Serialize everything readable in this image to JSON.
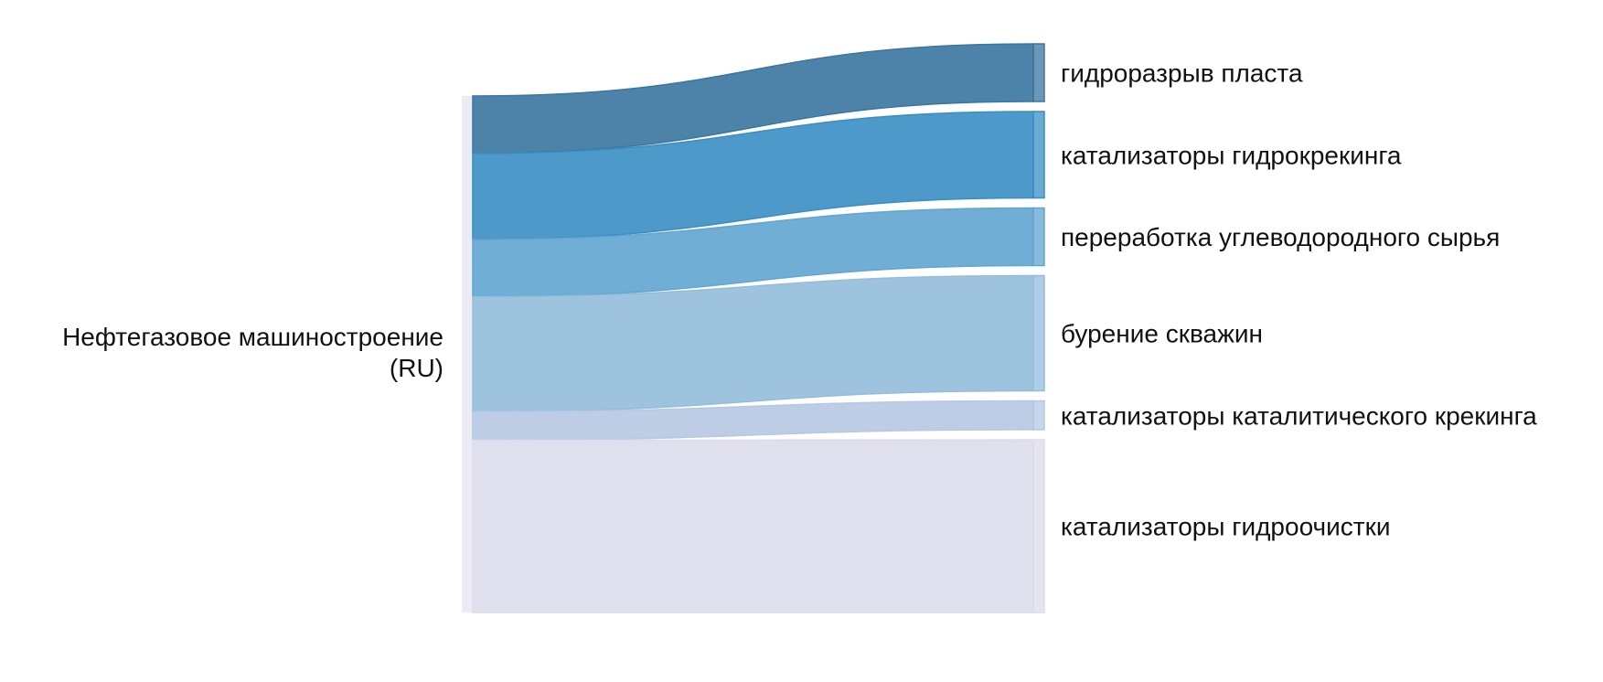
{
  "chart_data": {
    "type": "sankey",
    "source": {
      "name": "source-node",
      "label_lines": [
        "Нефтегазовое машиностроение",
        "(RU)"
      ],
      "color": "#dcdbec"
    },
    "links": [
      {
        "name": "link-gidrorazryv",
        "target_label": "гидроразрыв пласта",
        "value": 1.0,
        "color": "#3b76a0"
      },
      {
        "name": "link-gidrokreking",
        "target_label": "катализаторы гидрокрекинга",
        "value": 1.5,
        "color": "#3a8ec4"
      },
      {
        "name": "link-pererabotka",
        "target_label": "переработка углеводородного сырья",
        "value": 1.0,
        "color": "#61a5d0"
      },
      {
        "name": "link-burenie",
        "target_label": "бурение скважин",
        "value": 2.0,
        "color": "#94bcdb"
      },
      {
        "name": "link-kataliticheskiy",
        "target_label": "катализаторы каталитического крекинга",
        "value": 0.5,
        "color": "#b6c8e2"
      },
      {
        "name": "link-gidroochistka",
        "target_label": "катализаторы гидроочистки",
        "value": 3.0,
        "color": "#dcdbec"
      }
    ]
  }
}
